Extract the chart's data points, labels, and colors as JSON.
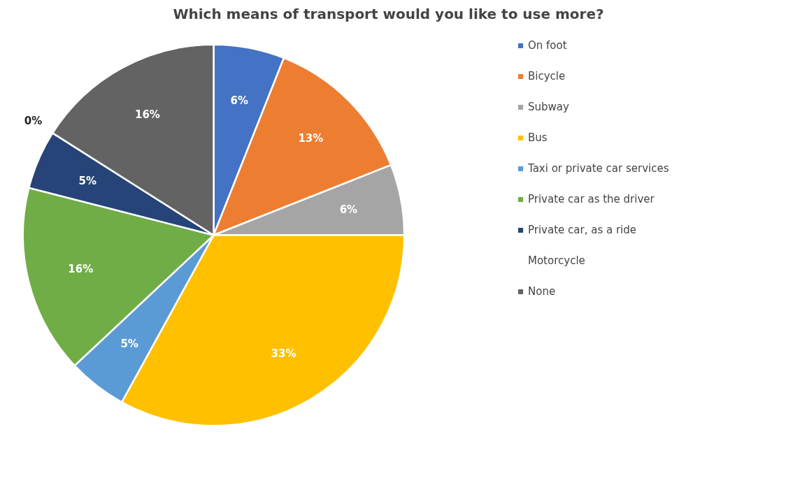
{
  "chart_data": {
    "type": "pie",
    "title": "Which means of transport would you like to use more?",
    "categories": [
      "On foot",
      "Bicycle",
      "Subway",
      "Bus",
      "Taxi or private car services",
      "Private car as the driver",
      "Private car, as a ride",
      "Motorcycle",
      "None"
    ],
    "values": [
      6,
      13,
      6,
      33,
      5,
      16,
      5,
      0,
      16
    ],
    "value_labels": [
      "6%",
      "13%",
      "6%",
      "33%",
      "5%",
      "16%",
      "5%",
      "0%",
      "16%"
    ],
    "colors": [
      "#4472c4",
      "#ed7d31",
      "#a5a5a5",
      "#ffc000",
      "#5b9bd5",
      "#70ad47",
      "#264478",
      "#9e480e",
      "#636363"
    ],
    "legend": "right"
  }
}
